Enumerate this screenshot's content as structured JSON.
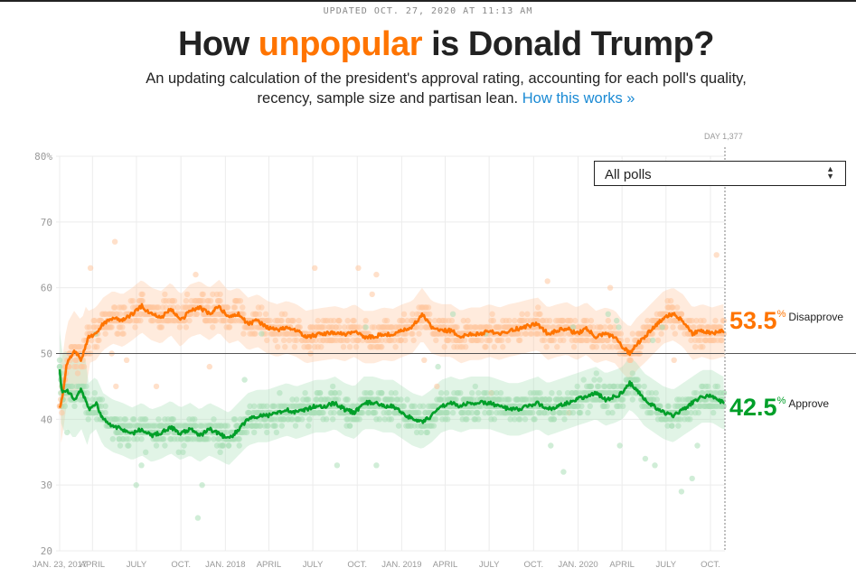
{
  "header": {
    "updated": "UPDATED OCT. 27, 2020 AT 11:13 AM",
    "title_pre": "How ",
    "title_highlight": "unpopular",
    "title_post": " is Donald Trump?",
    "subtitle": "An updating calculation of the president's approval rating, accounting for each poll's quality, recency, sample size and partisan lean.",
    "link_label": "How this works »"
  },
  "controls": {
    "poll_filter": "All polls",
    "day_label": "DAY 1,377"
  },
  "current": {
    "disapprove_value": "53.5",
    "disapprove_label": "Disapprove",
    "approve_value": "42.5",
    "approve_label": "Approve",
    "percent_sign": "%"
  },
  "colors": {
    "disapprove": "#ff7400",
    "approve": "#009f29",
    "disapprove_light": "#ffc79e",
    "approve_light": "#a9dfb7"
  },
  "chart_data": {
    "type": "line",
    "title": "How unpopular is Donald Trump?",
    "xlabel": "",
    "ylabel": "",
    "ylim": [
      20,
      80
    ],
    "yticks": [
      20,
      30,
      40,
      50,
      60,
      70,
      80
    ],
    "ytick_labels": [
      "20",
      "30",
      "40",
      "50",
      "60",
      "70",
      "80%"
    ],
    "xlim_days": [
      0,
      1377
    ],
    "xticks": [
      {
        "label": "JAN. 23, 2017",
        "day": 0
      },
      {
        "label": "APRIL",
        "day": 68
      },
      {
        "label": "JULY",
        "day": 159
      },
      {
        "label": "OCT.",
        "day": 251
      },
      {
        "label": "JAN. 2018",
        "day": 343
      },
      {
        "label": "APRIL",
        "day": 433
      },
      {
        "label": "JULY",
        "day": 524
      },
      {
        "label": "OCT.",
        "day": 616
      },
      {
        "label": "JAN. 2019",
        "day": 708
      },
      {
        "label": "APRIL",
        "day": 798
      },
      {
        "label": "JULY",
        "day": 889
      },
      {
        "label": "OCT.",
        "day": 981
      },
      {
        "label": "JAN. 2020",
        "day": 1073
      },
      {
        "label": "APRIL",
        "day": 1164
      },
      {
        "label": "JULY",
        "day": 1255
      },
      {
        "label": "OCT.",
        "day": 1347
      }
    ],
    "reference_line": 50,
    "grid": true,
    "legend": "right",
    "series": [
      {
        "name": "Disapprove",
        "x_days": [
          0,
          5,
          15,
          30,
          45,
          60,
          75,
          90,
          110,
          130,
          150,
          170,
          190,
          210,
          230,
          250,
          270,
          290,
          310,
          330,
          350,
          370,
          390,
          410,
          430,
          450,
          470,
          490,
          510,
          530,
          550,
          570,
          590,
          610,
          630,
          650,
          670,
          690,
          710,
          730,
          750,
          770,
          790,
          810,
          830,
          850,
          870,
          890,
          910,
          930,
          950,
          970,
          990,
          1010,
          1030,
          1050,
          1070,
          1090,
          1110,
          1130,
          1150,
          1165,
          1180,
          1195,
          1210,
          1230,
          1250,
          1270,
          1290,
          1310,
          1330,
          1350,
          1373
        ],
        "values": [
          41.5,
          43.0,
          48.5,
          50.5,
          49.0,
          52.5,
          53.0,
          54.5,
          55.5,
          55.0,
          56.0,
          57.2,
          56.0,
          55.5,
          56.8,
          55.0,
          56.5,
          57.0,
          56.0,
          57.2,
          55.5,
          56.0,
          54.5,
          55.0,
          54.0,
          53.5,
          54.0,
          53.5,
          52.5,
          52.8,
          53.0,
          53.2,
          52.8,
          53.5,
          52.5,
          52.5,
          53.0,
          52.8,
          53.5,
          54.0,
          56.0,
          54.0,
          53.5,
          53.5,
          52.5,
          53.0,
          53.0,
          53.5,
          53.0,
          53.5,
          53.8,
          54.2,
          54.5,
          53.0,
          53.5,
          53.8,
          53.0,
          53.8,
          52.5,
          53.0,
          52.5,
          51.0,
          50.0,
          51.5,
          52.5,
          54.0,
          55.5,
          56.0,
          55.0,
          53.0,
          53.5,
          53.0,
          53.5
        ]
      },
      {
        "name": "Approve",
        "x_days": [
          0,
          5,
          15,
          30,
          45,
          60,
          75,
          90,
          110,
          130,
          150,
          170,
          190,
          210,
          230,
          250,
          270,
          290,
          310,
          330,
          350,
          370,
          390,
          410,
          430,
          450,
          470,
          490,
          510,
          530,
          550,
          570,
          590,
          610,
          630,
          650,
          670,
          690,
          710,
          730,
          750,
          770,
          790,
          810,
          830,
          850,
          870,
          890,
          910,
          930,
          950,
          970,
          990,
          1010,
          1030,
          1050,
          1070,
          1090,
          1110,
          1130,
          1150,
          1165,
          1180,
          1195,
          1210,
          1230,
          1250,
          1270,
          1290,
          1310,
          1330,
          1350,
          1373
        ],
        "values": [
          47.5,
          44.0,
          44.5,
          43.0,
          44.5,
          41.5,
          42.5,
          40.0,
          39.0,
          38.5,
          37.8,
          38.5,
          37.5,
          38.0,
          38.8,
          37.8,
          38.5,
          37.5,
          38.5,
          37.8,
          37.0,
          38.5,
          40.0,
          40.5,
          40.5,
          41.0,
          41.5,
          41.0,
          41.5,
          42.0,
          42.0,
          42.5,
          41.5,
          41.0,
          42.5,
          42.5,
          42.0,
          42.0,
          41.0,
          40.0,
          39.5,
          40.5,
          42.0,
          42.5,
          42.0,
          42.5,
          42.5,
          42.5,
          42.0,
          41.5,
          41.5,
          42.0,
          42.5,
          41.5,
          42.0,
          42.5,
          43.0,
          43.5,
          44.0,
          43.0,
          43.5,
          44.0,
          45.5,
          44.5,
          43.0,
          42.0,
          41.0,
          40.5,
          41.5,
          42.5,
          43.5,
          43.5,
          42.5
        ]
      }
    ],
    "current_day": 1377,
    "current_values": {
      "Disapprove": 53.5,
      "Approve": 42.5
    }
  }
}
